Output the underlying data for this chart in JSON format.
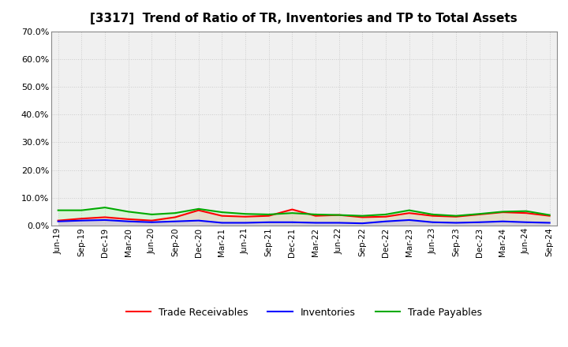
{
  "title": "[3317]  Trend of Ratio of TR, Inventories and TP to Total Assets",
  "labels": [
    "Jun-19",
    "Sep-19",
    "Dec-19",
    "Mar-20",
    "Jun-20",
    "Sep-20",
    "Dec-20",
    "Mar-21",
    "Jun-21",
    "Sep-21",
    "Dec-21",
    "Mar-22",
    "Jun-22",
    "Sep-22",
    "Dec-22",
    "Mar-23",
    "Jun-23",
    "Sep-23",
    "Dec-23",
    "Mar-24",
    "Jun-24",
    "Sep-24"
  ],
  "trade_receivables": [
    1.8,
    2.5,
    3.0,
    2.3,
    1.8,
    3.0,
    5.5,
    3.5,
    3.2,
    3.5,
    5.8,
    3.5,
    3.8,
    3.0,
    3.2,
    4.5,
    3.5,
    3.2,
    4.0,
    4.8,
    4.5,
    3.5
  ],
  "inventories": [
    1.5,
    1.8,
    2.0,
    1.5,
    1.2,
    1.5,
    1.8,
    1.0,
    1.0,
    1.2,
    1.2,
    1.0,
    1.0,
    0.8,
    1.5,
    2.0,
    1.2,
    1.0,
    1.2,
    1.5,
    1.2,
    1.0
  ],
  "trade_payables": [
    5.5,
    5.5,
    6.5,
    5.0,
    4.0,
    4.5,
    6.0,
    4.8,
    4.2,
    4.0,
    4.5,
    4.0,
    3.8,
    3.5,
    4.0,
    5.5,
    4.0,
    3.5,
    4.2,
    5.0,
    5.2,
    3.8
  ],
  "tr_color": "#ff0000",
  "inv_color": "#0000ff",
  "tp_color": "#00aa00",
  "tr_fill": "#ffaaaa",
  "inv_fill": "#aaaaff",
  "tp_fill": "#aaffaa",
  "background_color": "#ffffff",
  "plot_bg_color": "#f0f0f0",
  "grid_color": "#cccccc",
  "ylim": [
    0,
    70
  ],
  "yticks": [
    0,
    10,
    20,
    30,
    40,
    50,
    60,
    70
  ]
}
